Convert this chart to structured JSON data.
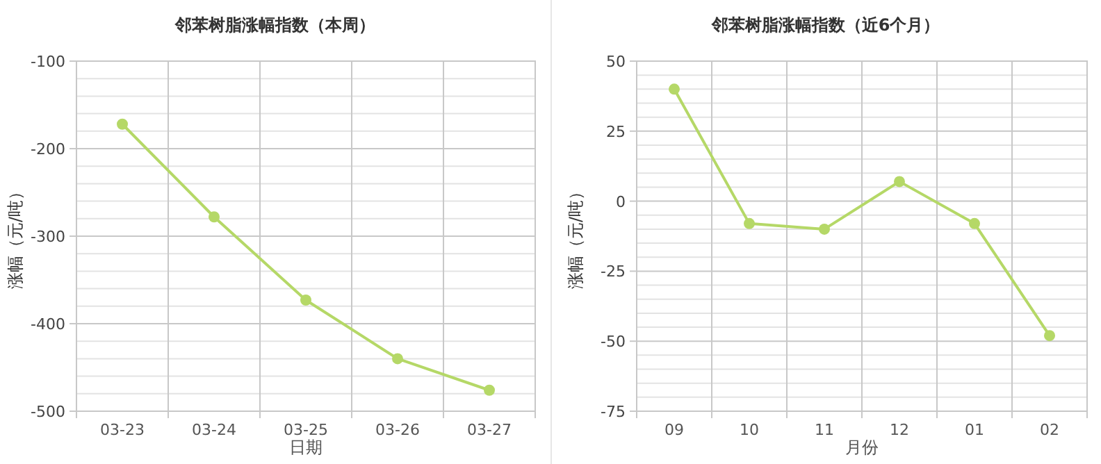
{
  "chart_data": [
    {
      "type": "line",
      "title": "邻苯树脂涨幅指数（本周）",
      "xlabel": "日期",
      "ylabel": "涨幅（元/吨）",
      "categories": [
        "03-23",
        "03-24",
        "03-25",
        "03-26",
        "03-27"
      ],
      "series": [
        {
          "color": "#b5d867",
          "values": [
            -172,
            -278,
            -373,
            -440,
            -476
          ]
        }
      ],
      "ylim": [
        -500,
        -100
      ],
      "yticks": [
        -500,
        -400,
        -300,
        -200,
        -100
      ],
      "grid": true,
      "marker": "circle",
      "line_style": "solid"
    },
    {
      "type": "line",
      "title": "邻苯树脂涨幅指数（近6个月）",
      "xlabel": "月份",
      "ylabel": "涨幅（元/吨）",
      "categories": [
        "09",
        "10",
        "11",
        "12",
        "01",
        "02"
      ],
      "series": [
        {
          "color": "#b5d867",
          "values": [
            40,
            -8,
            -10,
            7,
            -8,
            -48
          ]
        }
      ],
      "ylim": [
        -75,
        50
      ],
      "yticks": [
        -75,
        -50,
        -25,
        0,
        25,
        50
      ],
      "grid": true,
      "marker": "circle",
      "line_style": "solid"
    }
  ]
}
